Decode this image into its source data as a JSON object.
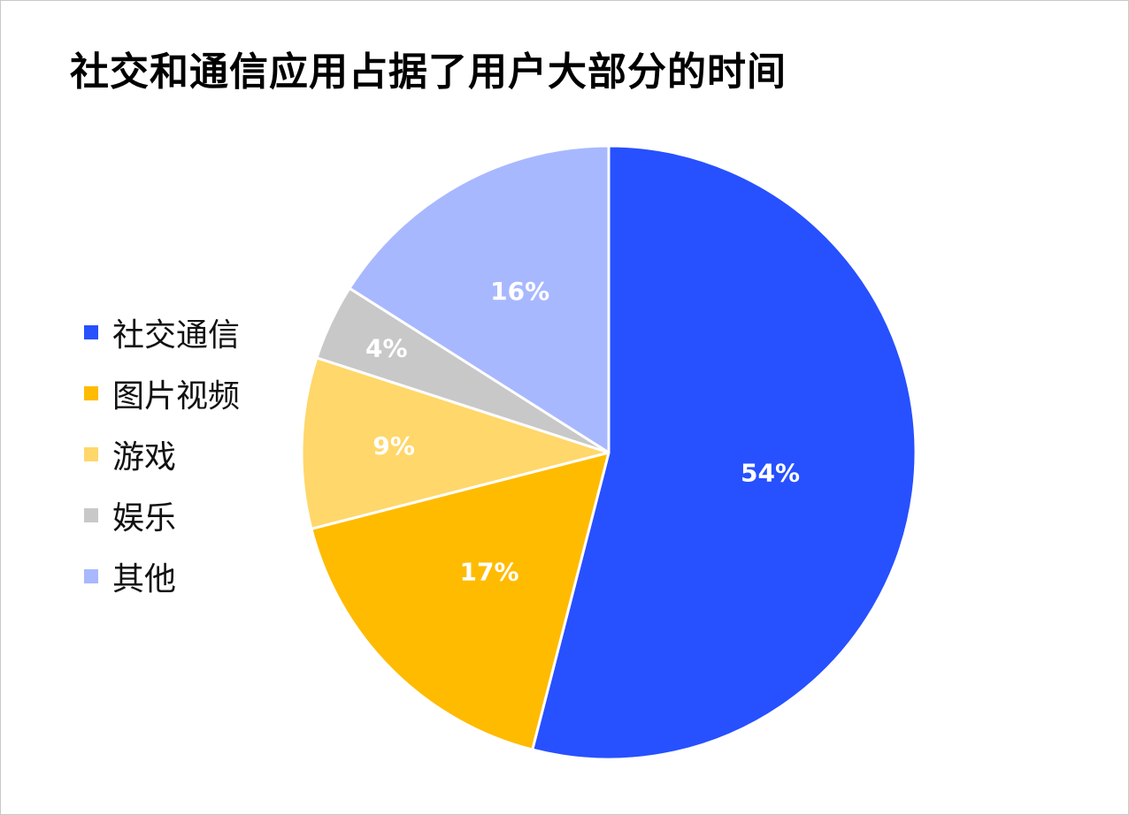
{
  "chart_data": {
    "type": "pie",
    "title": "社交和通信应用占据了用户大部分的时间",
    "legend_position": "left",
    "start_angle": "12 o'clock",
    "direction": "clockwise",
    "slices": [
      {
        "name": "社交通信",
        "value": 54,
        "label": "54%",
        "color": "#2750FF"
      },
      {
        "name": "图片视频",
        "value": 17,
        "label": "17%",
        "color": "#FFBB00"
      },
      {
        "name": "游戏",
        "value": 9,
        "label": "9%",
        "color": "#FFD76A"
      },
      {
        "name": "娱乐",
        "value": 4,
        "label": "4%",
        "color": "#C8C8C8"
      },
      {
        "name": "其他",
        "value": 16,
        "label": "16%",
        "color": "#A8B8FF"
      }
    ]
  }
}
